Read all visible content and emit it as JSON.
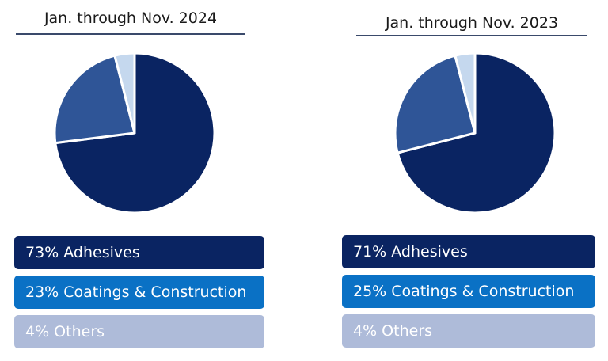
{
  "colors": {
    "adhesives": "#0a2462",
    "coatings": "#2f5597",
    "others": "#c5d8ee",
    "legend_adhesives": "#0a2462",
    "legend_coatings": "#0a71c5",
    "legend_others": "#aebbd9"
  },
  "chart_data": [
    {
      "type": "pie",
      "title": "Jan. through Nov. 2024",
      "slices": [
        {
          "label": "Adhesives",
          "value": 73,
          "legend": "73% Adhesives"
        },
        {
          "label": "Coatings & Construction",
          "value": 23,
          "legend": "23% Coatings & Construction"
        },
        {
          "label": "Others",
          "value": 4,
          "legend": "4% Others"
        }
      ]
    },
    {
      "type": "pie",
      "title": "Jan. through Nov. 2023",
      "slices": [
        {
          "label": "Adhesives",
          "value": 71,
          "legend": "71% Adhesives"
        },
        {
          "label": "Coatings & Construction",
          "value": 25,
          "legend": "25% Coatings & Construction"
        },
        {
          "label": "Others",
          "value": 4,
          "legend": "4% Others"
        }
      ]
    }
  ]
}
